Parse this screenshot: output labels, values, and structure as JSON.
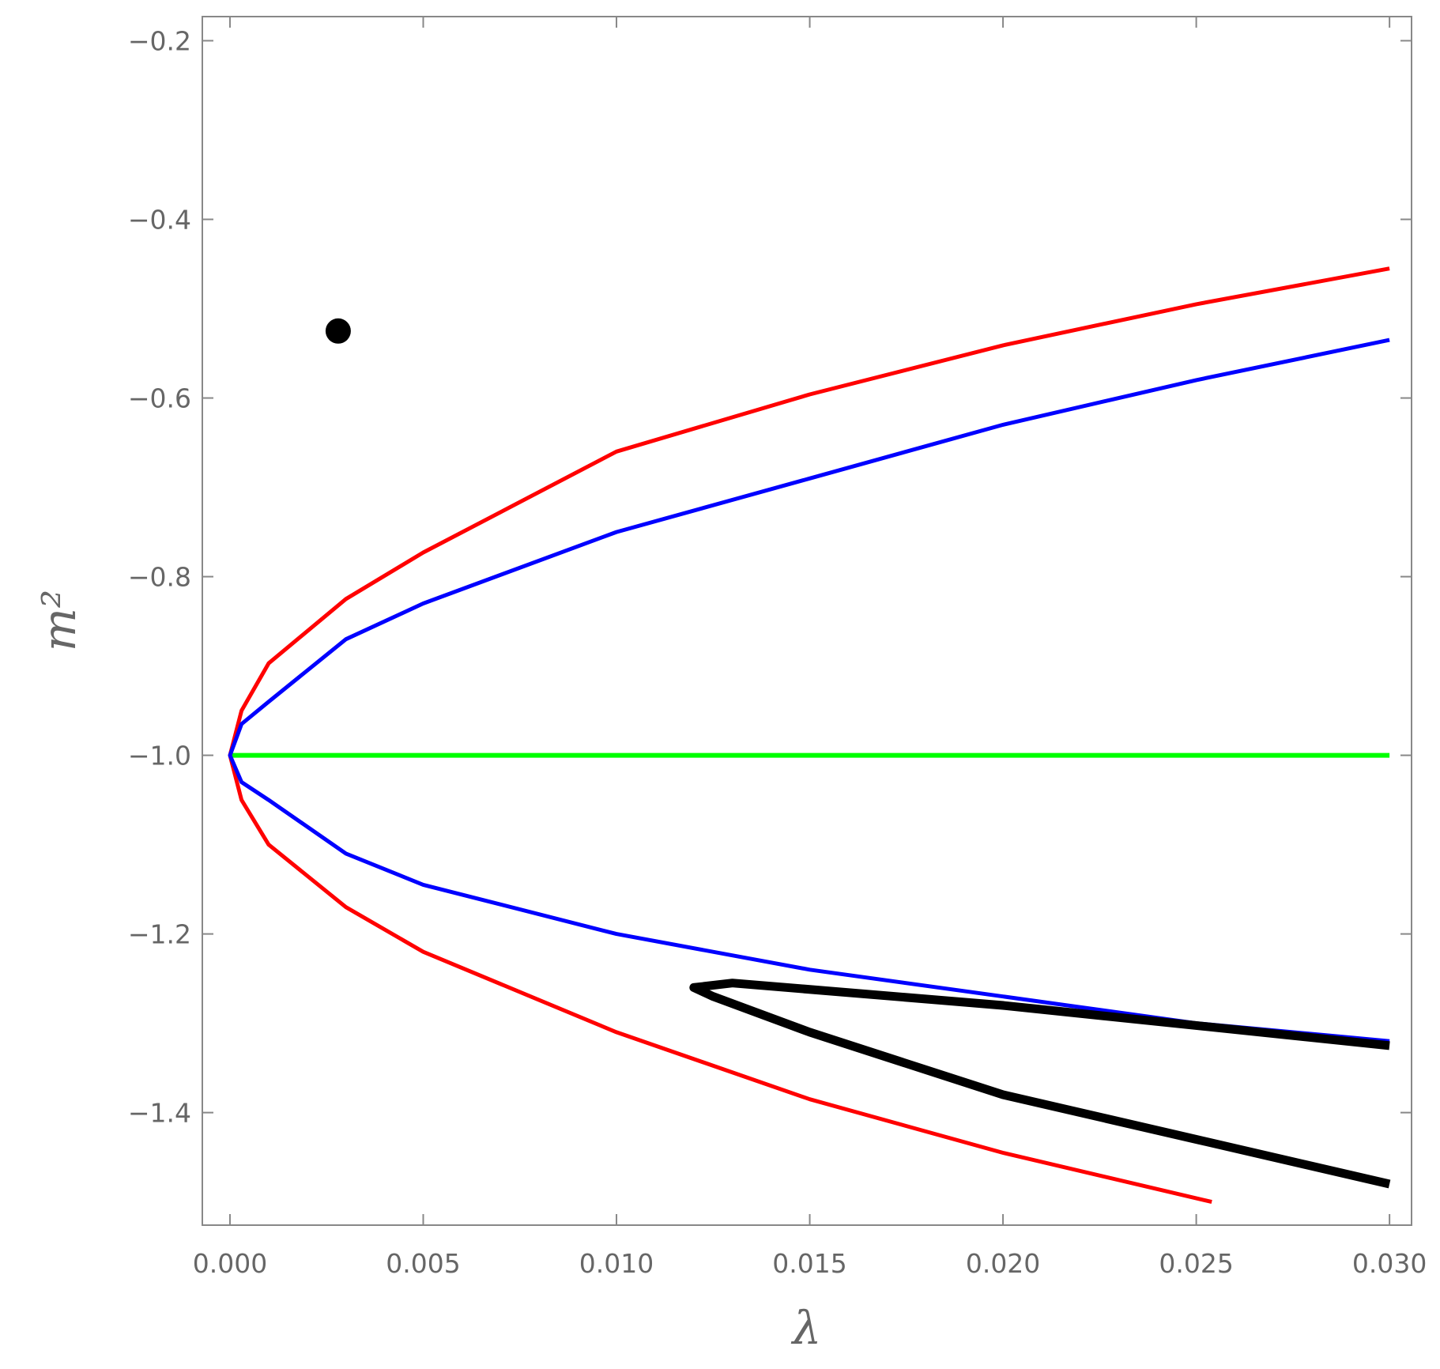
{
  "chart_data": {
    "type": "line",
    "x_label": "λ",
    "y_label": "m²",
    "xlim": [
      -0.000715,
      0.03057
    ],
    "ylim": [
      -1.526,
      -0.173
    ],
    "xticks": [
      {
        "value": 0,
        "label": "0.000"
      },
      {
        "value": 0.005,
        "label": "0.005"
      },
      {
        "value": 0.01,
        "label": "0.010"
      },
      {
        "value": 0.015,
        "label": "0.015"
      },
      {
        "value": 0.02,
        "label": "0.020"
      },
      {
        "value": 0.025,
        "label": "0.025"
      },
      {
        "value": 0.03,
        "label": "0.030"
      }
    ],
    "yticks": [
      {
        "value": -0.2,
        "label": "−0.2"
      },
      {
        "value": -0.4,
        "label": "−0.4"
      },
      {
        "value": -0.6,
        "label": "−0.6"
      },
      {
        "value": -0.8,
        "label": "−0.8"
      },
      {
        "value": -1.0,
        "label": "−1.0"
      },
      {
        "value": -1.2,
        "label": "−1.2"
      },
      {
        "value": -1.4,
        "label": "−1.4"
      }
    ],
    "series": [
      {
        "color": "#00ff00",
        "width": 6,
        "x": [
          0,
          0.03
        ],
        "values": [
          -1.0,
          -1.0
        ]
      },
      {
        "color": "#ff0000",
        "width": 5,
        "x": [
          0.0254,
          0.02,
          0.015,
          0.01,
          0.005,
          0.003,
          0.001,
          0.0003,
          0,
          0.0003,
          0.001,
          0.003,
          0.005,
          0.01,
          0.015,
          0.02,
          0.025,
          0.03
        ],
        "values": [
          -1.5,
          -1.445,
          -1.385,
          -1.31,
          -1.22,
          -1.17,
          -1.1,
          -1.05,
          -1.0,
          -0.95,
          -0.897,
          -0.825,
          -0.773,
          -0.66,
          -0.596,
          -0.541,
          -0.495,
          -0.455
        ]
      },
      {
        "color": "#0000ff",
        "width": 5,
        "x": [
          0.03,
          0.025,
          0.02,
          0.015,
          0.01,
          0.005,
          0.003,
          0.001,
          0.0003,
          0,
          0.0003,
          0.001,
          0.003,
          0.005,
          0.01,
          0.015,
          0.02,
          0.025,
          0.03
        ],
        "values": [
          -1.32,
          -1.3,
          -1.27,
          -1.24,
          -1.2,
          -1.145,
          -1.11,
          -1.05,
          -1.03,
          -1.0,
          -0.965,
          -0.94,
          -0.87,
          -0.83,
          -0.75,
          -0.69,
          -0.63,
          -0.58,
          -0.535
        ]
      },
      {
        "color": "#000000",
        "width": 11,
        "x": [
          0.03,
          0.02,
          0.013,
          0.012,
          0.0125,
          0.015,
          0.02,
          0.025,
          0.03
        ],
        "values": [
          -1.325,
          -1.28,
          -1.255,
          -1.26,
          -1.27,
          -1.31,
          -1.38,
          -1.43,
          -1.48
        ]
      },
      {
        "color": "#000000",
        "marker": true,
        "x": [
          0.0028
        ],
        "values": [
          -0.525
        ]
      }
    ]
  }
}
